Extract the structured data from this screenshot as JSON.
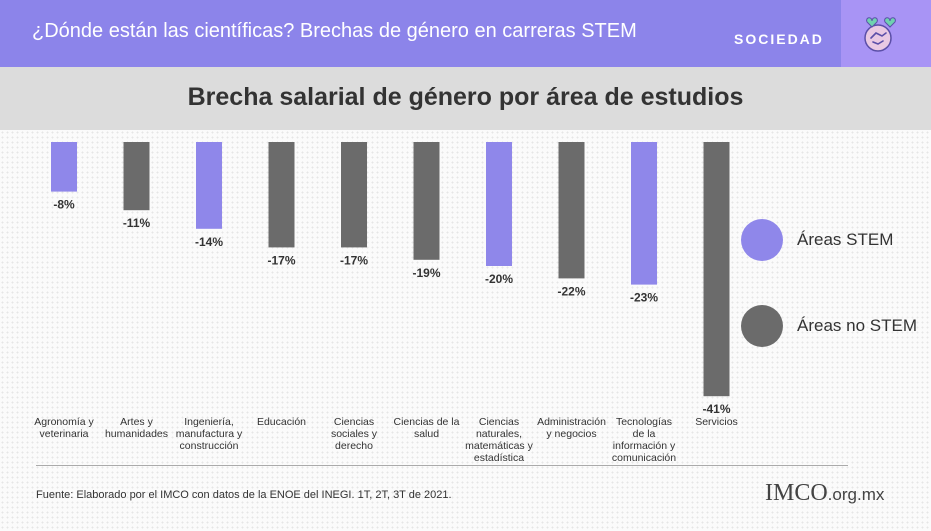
{
  "header": {
    "title": "¿Dónde están las científicas? Brechas de género en carreras STEM",
    "section": "SOCIEDAD",
    "icon": "handshake-heart-icon"
  },
  "chart_data": {
    "type": "bar",
    "title": "Brecha salarial de género por área de estudios",
    "categories": [
      [
        "Agronomía y",
        "veterinaria"
      ],
      [
        "Artes y",
        "humanidades"
      ],
      [
        "Ingeniería,",
        "manufactura y",
        "construcción"
      ],
      [
        "Educación"
      ],
      [
        "Ciencias",
        "sociales y",
        "derecho"
      ],
      [
        "Ciencias de la",
        "salud"
      ],
      [
        "Ciencias",
        "naturales,",
        "matemáticas y",
        "estadística"
      ],
      [
        "Administración",
        "y negocios"
      ],
      [
        "Tecnologías",
        "de la",
        "información y",
        "comunicación"
      ],
      [
        "Servicios"
      ]
    ],
    "values": [
      -8,
      -11,
      -14,
      -17,
      -17,
      -19,
      -20,
      -22,
      -23,
      -41
    ],
    "value_labels": [
      "-8%",
      "-11%",
      "-14%",
      "-17%",
      "-17%",
      "-19%",
      "-20%",
      "-22%",
      "-23%",
      "-41%"
    ],
    "group": [
      "STEM",
      "no STEM",
      "STEM",
      "no STEM",
      "no STEM",
      "no STEM",
      "STEM",
      "no STEM",
      "STEM",
      "no STEM"
    ],
    "colors": {
      "STEM": "#8f87ea",
      "no STEM": "#6b6b6b"
    },
    "legend": [
      {
        "key": "STEM",
        "label": "Áreas STEM"
      },
      {
        "key": "no STEM",
        "label": "Áreas no STEM"
      }
    ],
    "legend_position": "right",
    "ylim": [
      -41,
      0
    ],
    "grid": false
  },
  "source": "Fuente: Elaborado por el IMCO con datos de la ENOE del INEGI. 1T, 2T, 3T de 2021.",
  "logo": {
    "brand": "IMCO",
    "domain": ".org.mx"
  }
}
